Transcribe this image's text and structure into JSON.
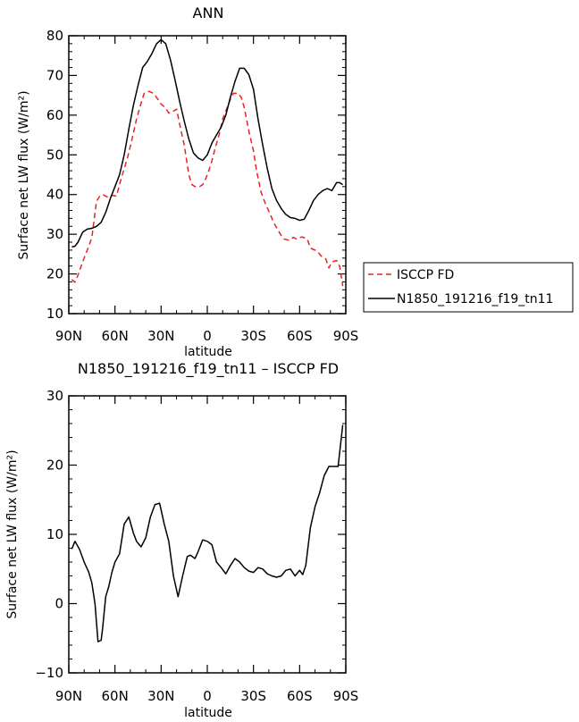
{
  "chart_data": [
    {
      "type": "line",
      "title": "ANN",
      "xlabel": "latitude",
      "ylabel": "Surface net LW flux (W/m²)",
      "x_ticks": [
        {
          "value": 90,
          "label": "90N"
        },
        {
          "value": 60,
          "label": "60N"
        },
        {
          "value": 30,
          "label": "30N"
        },
        {
          "value": 0,
          "label": "0"
        },
        {
          "value": -30,
          "label": "30S"
        },
        {
          "value": -60,
          "label": "60S"
        },
        {
          "value": -90,
          "label": "90S"
        }
      ],
      "xlim": [
        90,
        -90
      ],
      "ylim": [
        10,
        80
      ],
      "y_ticks": [
        10,
        20,
        30,
        40,
        50,
        60,
        70,
        80
      ],
      "legend_position": "right",
      "series": [
        {
          "name": "ISCCP FD",
          "style": "dashed",
          "color": "#e8231e",
          "x": [
            88,
            86,
            84,
            81,
            79,
            77,
            75,
            72,
            70,
            68,
            65,
            62,
            59,
            56,
            54,
            52,
            49,
            46,
            43,
            41,
            38,
            35,
            33,
            30,
            27,
            25,
            22,
            20,
            17,
            15,
            12,
            10,
            8,
            5,
            3,
            1,
            -1,
            -3,
            -5,
            -8,
            -10,
            -13,
            -15,
            -17,
            -20,
            -22,
            -24,
            -27,
            -30,
            -32,
            -35,
            -38,
            -41,
            -43,
            -46,
            -48,
            -50,
            -53,
            -56,
            -58,
            -60,
            -62,
            -65,
            -67,
            -70,
            -72,
            -74,
            -77,
            -79,
            -81,
            -84,
            -86,
            -88
          ],
          "values": [
            18.6,
            17.9,
            19.7,
            23.0,
            25.0,
            27.0,
            29.2,
            38.3,
            39.5,
            40.0,
            39.4,
            39.8,
            39.6,
            44.0,
            46.5,
            49.0,
            53.8,
            59.0,
            63.0,
            65.5,
            66.0,
            65.5,
            64.5,
            62.8,
            61.8,
            60.5,
            61.0,
            61.5,
            56.0,
            52.5,
            45.0,
            42.5,
            42.0,
            42.0,
            42.5,
            44.0,
            46.0,
            48.5,
            51.5,
            55.5,
            59.0,
            62.0,
            64.0,
            65.5,
            65.5,
            64.5,
            62.0,
            56.0,
            51.0,
            46.0,
            40.5,
            37.5,
            35.0,
            33.0,
            31.0,
            29.7,
            28.8,
            28.5,
            29.2,
            28.8,
            29.2,
            29.3,
            28.8,
            26.5,
            26.0,
            25.5,
            24.5,
            23.8,
            21.5,
            23.0,
            23.4,
            22.0,
            16.9
          ]
        },
        {
          "name": "N1850_191216_f19_tn11",
          "style": "solid",
          "color": "#000000",
          "x": [
            88,
            86,
            84,
            81,
            78,
            75,
            72,
            69,
            66,
            63,
            60,
            57,
            54,
            51,
            48,
            45,
            42,
            39,
            36,
            33,
            30,
            27,
            24,
            21,
            18,
            15,
            12,
            9,
            6,
            3,
            0,
            -3,
            -6,
            -9,
            -12,
            -15,
            -18,
            -21,
            -24,
            -27,
            -30,
            -33,
            -36,
            -39,
            -42,
            -45,
            -48,
            -51,
            -54,
            -57,
            -60,
            -63,
            -66,
            -69,
            -72,
            -75,
            -78,
            -81,
            -84,
            -86,
            -88
          ],
          "values": [
            26.8,
            27.0,
            28.0,
            30.5,
            31.3,
            31.5,
            32.0,
            33.0,
            35.5,
            39.0,
            42.0,
            45.0,
            50.0,
            56.5,
            62.5,
            67.5,
            72.0,
            73.5,
            75.5,
            78.0,
            79.0,
            78.0,
            74.0,
            69.0,
            63.5,
            58.5,
            54.0,
            50.5,
            49.2,
            48.6,
            50.0,
            53.0,
            55.0,
            57.0,
            60.0,
            64.5,
            68.5,
            71.8,
            71.8,
            70.2,
            66.5,
            59.0,
            52.5,
            46.5,
            41.5,
            38.5,
            36.5,
            35.0,
            34.2,
            34.0,
            33.5,
            33.8,
            36.0,
            38.5,
            40.0,
            41.0,
            41.5,
            41.0,
            43.0,
            43.0,
            42.5
          ]
        }
      ]
    },
    {
      "type": "line",
      "title": "N1850_191216_f19_tn11 – ISCCP FD",
      "xlabel": "latitude",
      "ylabel": "Surface net LW flux (W/m²)",
      "x_ticks": [
        {
          "value": 90,
          "label": "90N"
        },
        {
          "value": 60,
          "label": "60N"
        },
        {
          "value": 30,
          "label": "30N"
        },
        {
          "value": 0,
          "label": "0"
        },
        {
          "value": -30,
          "label": "30S"
        },
        {
          "value": -60,
          "label": "60S"
        },
        {
          "value": -90,
          "label": "90S"
        }
      ],
      "xlim": [
        90,
        -90
      ],
      "ylim": [
        -10,
        30
      ],
      "y_ticks": [
        -10,
        0,
        10,
        20,
        30
      ],
      "series": [
        {
          "style": "solid",
          "color": "#000000",
          "x": [
            88,
            86,
            83,
            80,
            77,
            75,
            73,
            71,
            69,
            68,
            66,
            64,
            62,
            60,
            57,
            54,
            51,
            48,
            46,
            43,
            40,
            37,
            34,
            31,
            28,
            25,
            22,
            19,
            16,
            13,
            11,
            8,
            6,
            3,
            0,
            -3,
            -6,
            -9,
            -12,
            -15,
            -18,
            -21,
            -24,
            -27,
            -30,
            -33,
            -36,
            -39,
            -42,
            -45,
            -48,
            -51,
            -54,
            -57,
            -60,
            -62,
            -64,
            -67,
            -70,
            -73,
            -76,
            -79,
            -82,
            -85,
            -88
          ],
          "values": [
            7.9,
            9.0,
            7.8,
            6.0,
            4.5,
            3.0,
            0.0,
            -5.5,
            -5.3,
            -3.5,
            1.0,
            2.5,
            4.5,
            6.0,
            7.2,
            11.5,
            12.5,
            10.2,
            9.0,
            8.2,
            9.5,
            12.5,
            14.3,
            14.5,
            11.5,
            9.0,
            4.0,
            1.0,
            4.0,
            6.8,
            7.0,
            6.5,
            7.5,
            9.2,
            9.0,
            8.5,
            6.0,
            5.2,
            4.3,
            5.5,
            6.5,
            6.0,
            5.2,
            4.7,
            4.5,
            5.2,
            5.0,
            4.3,
            4.0,
            3.8,
            4.0,
            4.8,
            5.0,
            4.0,
            4.8,
            4.2,
            5.5,
            11.0,
            14.0,
            16.0,
            18.5,
            19.8,
            19.8,
            19.8,
            25.8
          ]
        }
      ]
    }
  ]
}
